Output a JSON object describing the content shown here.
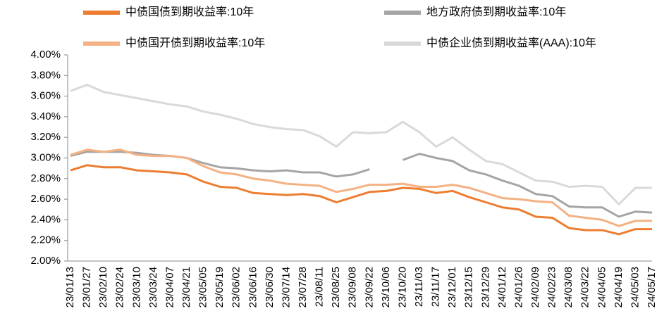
{
  "chart_data": {
    "type": "line",
    "categories": [
      "23/01/13",
      "23/01/27",
      "23/02/10",
      "23/02/24",
      "23/03/10",
      "23/03/24",
      "23/04/07",
      "23/04/21",
      "23/05/05",
      "23/05/19",
      "23/06/02",
      "23/06/16",
      "23/06/30",
      "23/07/14",
      "23/07/28",
      "23/08/11",
      "23/08/25",
      "23/09/08",
      "23/09/22",
      "23/10/06",
      "23/10/20",
      "23/11/03",
      "23/11/17",
      "23/12/01",
      "23/12/15",
      "23/12/29",
      "24/01/12",
      "24/01/26",
      "24/02/09",
      "24/02/23",
      "24/03/08",
      "24/03/22",
      "24/04/05",
      "24/04/19",
      "24/05/03",
      "24/05/17"
    ],
    "series": [
      {
        "name": "中债国债到期收益率:10年",
        "color": "#ed7d31",
        "values": [
          2.88,
          2.93,
          2.91,
          2.91,
          2.88,
          2.87,
          2.86,
          2.84,
          2.77,
          2.72,
          2.71,
          2.66,
          2.65,
          2.64,
          2.65,
          2.63,
          2.57,
          2.62,
          2.67,
          2.68,
          2.71,
          2.7,
          2.66,
          2.68,
          2.62,
          2.57,
          2.52,
          2.5,
          2.43,
          2.42,
          2.32,
          2.3,
          2.3,
          2.26,
          2.31,
          2.31
        ]
      },
      {
        "name": "地方政府债到期收益率:10年",
        "color": "#a5a5a5",
        "values": [
          3.02,
          3.06,
          3.06,
          3.06,
          3.05,
          3.03,
          3.02,
          3.0,
          2.95,
          2.91,
          2.9,
          2.88,
          2.87,
          2.88,
          2.86,
          2.86,
          2.82,
          2.84,
          2.89,
          null,
          2.98,
          3.04,
          3.0,
          2.97,
          2.88,
          2.84,
          2.78,
          2.73,
          2.65,
          2.63,
          2.53,
          2.52,
          2.52,
          2.43,
          2.48,
          2.47
        ]
      },
      {
        "name": "中债国开债到期收益率:10年",
        "color": "#f4b183",
        "values": [
          3.03,
          3.08,
          3.06,
          3.08,
          3.03,
          3.02,
          3.02,
          3.0,
          2.92,
          2.86,
          2.84,
          2.8,
          2.78,
          2.75,
          2.74,
          2.73,
          2.67,
          2.7,
          2.74,
          2.74,
          2.75,
          2.72,
          2.72,
          2.74,
          2.71,
          2.66,
          2.61,
          2.6,
          2.58,
          2.57,
          2.44,
          2.42,
          2.4,
          2.34,
          2.39,
          2.39
        ]
      },
      {
        "name": "中债企业债到期收益率(AAA):10年",
        "color": "#d9d9d9",
        "values": [
          3.65,
          3.71,
          3.64,
          3.61,
          3.58,
          3.55,
          3.52,
          3.5,
          3.45,
          3.42,
          3.38,
          3.33,
          3.3,
          3.28,
          3.27,
          3.21,
          3.11,
          3.25,
          3.24,
          3.25,
          3.35,
          3.25,
          3.11,
          3.2,
          3.08,
          2.97,
          2.94,
          2.86,
          2.78,
          2.77,
          2.72,
          2.73,
          2.72,
          2.55,
          2.71,
          2.71
        ]
      }
    ],
    "ylim": [
      2,
      4
    ],
    "yticks": [
      {
        "value": 2,
        "label": "2.00%"
      },
      {
        "value": 2.2,
        "label": "2.20%"
      },
      {
        "value": 2.4,
        "label": "2.40%"
      },
      {
        "value": 2.6,
        "label": "2.60%"
      },
      {
        "value": 2.8,
        "label": "2.80%"
      },
      {
        "value": 3,
        "label": "3.00%"
      },
      {
        "value": 3.2,
        "label": "3.20%"
      },
      {
        "value": 3.4,
        "label": "3.40%"
      },
      {
        "value": 3.6,
        "label": "3.60%"
      },
      {
        "value": 3.8,
        "label": "3.80%"
      },
      {
        "value": 4,
        "label": "4.00%"
      }
    ],
    "grid": false
  }
}
